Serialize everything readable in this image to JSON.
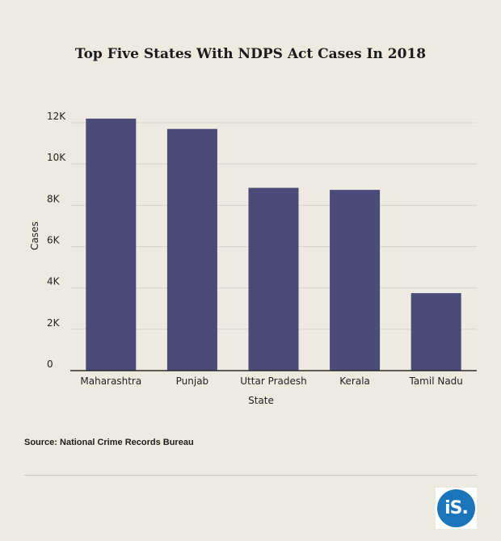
{
  "chart_data": {
    "type": "bar",
    "title": "Top Five States With NDPS Act Cases In 2018",
    "xlabel": "State",
    "ylabel": "Cases",
    "categories": [
      "Maharashtra",
      "Punjab",
      "Uttar Pradesh",
      "Kerala",
      "Tamil Nadu"
    ],
    "values": [
      12200,
      11700,
      8850,
      8750,
      3750
    ],
    "ylim": [
      0,
      12000
    ],
    "yticks": [
      0,
      2000,
      4000,
      6000,
      8000,
      10000,
      12000
    ],
    "ytick_labels": [
      "0",
      "2K",
      "4K",
      "6K",
      "8K",
      "10K",
      "12K"
    ],
    "bar_color": "#4b4b7a",
    "grid": true,
    "legend": "none"
  },
  "source": "Source: National Crime Records Bureau",
  "logo": {
    "text": "iS.",
    "color": "#1b75bb"
  }
}
